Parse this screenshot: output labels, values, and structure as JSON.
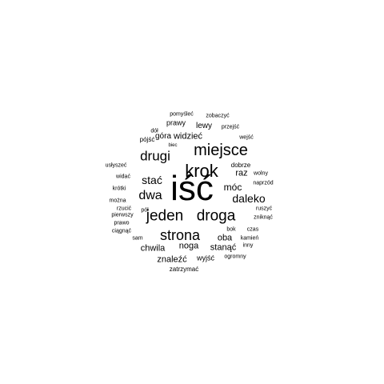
{
  "word_cloud": {
    "words": [
      {
        "text": "iść",
        "weight": 100
      },
      {
        "text": "krok",
        "weight": 44
      },
      {
        "text": "miejsce",
        "weight": 40
      },
      {
        "text": "droga",
        "weight": 38
      },
      {
        "text": "jeden",
        "weight": 38
      },
      {
        "text": "strona",
        "weight": 36
      },
      {
        "text": "drugi",
        "weight": 34
      },
      {
        "text": "dwa",
        "weight": 31
      },
      {
        "text": "daleko",
        "weight": 28
      },
      {
        "text": "stać",
        "weight": 28
      },
      {
        "text": "móc",
        "weight": 24
      },
      {
        "text": "widzieć",
        "weight": 21
      },
      {
        "text": "noga",
        "weight": 20
      },
      {
        "text": "oba",
        "weight": 20
      },
      {
        "text": "chwila",
        "weight": 18
      },
      {
        "text": "stanąć",
        "weight": 18
      },
      {
        "text": "raz",
        "weight": 18
      },
      {
        "text": "znaleźć",
        "weight": 18
      },
      {
        "text": "góra",
        "weight": 17
      },
      {
        "text": "lewy",
        "weight": 16
      },
      {
        "text": "prawy",
        "weight": 16
      },
      {
        "text": "wyjść",
        "weight": 15
      },
      {
        "text": "pójść",
        "weight": 15
      },
      {
        "text": "dobrze",
        "weight": 14
      },
      {
        "text": "zatrzymać",
        "weight": 14
      },
      {
        "text": "usłyszeć",
        "weight": 13
      },
      {
        "text": "bok",
        "weight": 12
      },
      {
        "text": "przejść",
        "weight": 12
      },
      {
        "text": "dół",
        "weight": 12
      },
      {
        "text": "kamień",
        "weight": 11
      },
      {
        "text": "naprzód",
        "weight": 11
      },
      {
        "text": "widać",
        "weight": 11
      },
      {
        "text": "rzucić",
        "weight": 11
      },
      {
        "text": "pierwszy",
        "weight": 11
      },
      {
        "text": "zobaczyć",
        "weight": 11
      },
      {
        "text": "pomyśleć",
        "weight": 11
      },
      {
        "text": "krótki",
        "weight": 10
      },
      {
        "text": "można",
        "weight": 10
      },
      {
        "text": "ciągnąć",
        "weight": 10
      },
      {
        "text": "zniknąć",
        "weight": 10
      },
      {
        "text": "czas",
        "weight": 10
      },
      {
        "text": "ruszyć",
        "weight": 10
      },
      {
        "text": "wejść",
        "weight": 10
      },
      {
        "text": "ogromny",
        "weight": 10
      },
      {
        "text": "inny",
        "weight": 10
      },
      {
        "text": "wolny",
        "weight": 10
      },
      {
        "text": "pół",
        "weight": 10
      },
      {
        "text": "prawo",
        "weight": 10
      },
      {
        "text": "sam",
        "weight": 10
      },
      {
        "text": "biec",
        "weight": 9
      }
    ]
  }
}
